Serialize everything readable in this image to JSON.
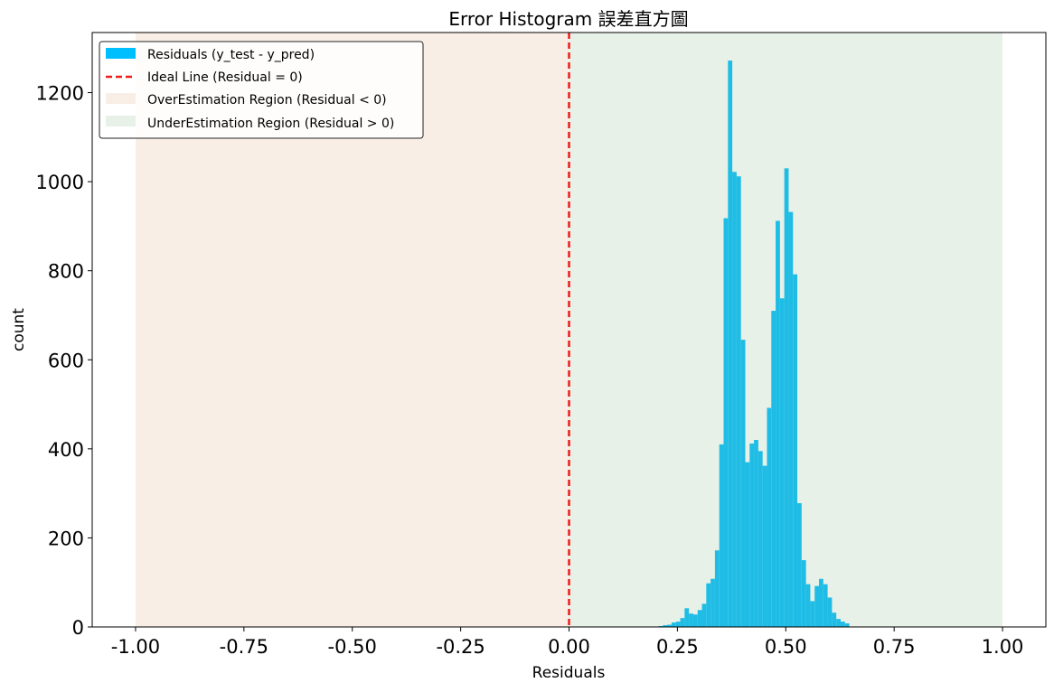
{
  "chart_data": {
    "type": "bar",
    "title": "Error Histogram 誤差直方圖",
    "xlabel": "Residuals",
    "ylabel": "count",
    "xlim": [
      -1.1,
      1.1
    ],
    "ylim": [
      0,
      1335
    ],
    "xticks": [
      -1.0,
      -0.75,
      -0.5,
      -0.25,
      0.0,
      0.25,
      0.5,
      0.75,
      1.0
    ],
    "xtick_labels": [
      "-1.00",
      "-0.75",
      "-0.50",
      "-0.25",
      "0.00",
      "0.25",
      "0.50",
      "0.75",
      "1.00"
    ],
    "yticks": [
      0,
      200,
      400,
      600,
      800,
      1000,
      1200
    ],
    "ytick_labels": [
      "0",
      "200",
      "400",
      "600",
      "800",
      "1000",
      "1200"
    ],
    "grid": false,
    "legend_position": "top-left",
    "regions": [
      {
        "name": "OverEstimation Region (Residual < 0)",
        "x0": -1.0,
        "x1": 0.0,
        "color": "#f4e3d3",
        "opacity": 0.6
      },
      {
        "name": "UnderEstimation Region (Residual > 0)",
        "x0": 0.0,
        "x1": 1.0,
        "color": "#cfe4cf",
        "opacity": 0.5
      }
    ],
    "ideal_line": {
      "name": "Ideal Line (Residual = 0)",
      "x": 0.0,
      "color": "#ee1c1c"
    },
    "histogram": {
      "name": "Residuals (y_test - y_pred)",
      "color": "#1fbde6",
      "legend_color": "#00bfff",
      "bin_start": 0.2066,
      "bin_width": 0.01,
      "counts": [
        2,
        4,
        5,
        10,
        12,
        20,
        42,
        30,
        28,
        38,
        52,
        98,
        108,
        172,
        410,
        918,
        1272,
        1022,
        1012,
        645,
        370,
        412,
        420,
        395,
        362,
        492,
        710,
        912,
        738,
        1030,
        932,
        792,
        278,
        150,
        96,
        58,
        92,
        108,
        96,
        66,
        32,
        18,
        12,
        8
      ]
    }
  }
}
